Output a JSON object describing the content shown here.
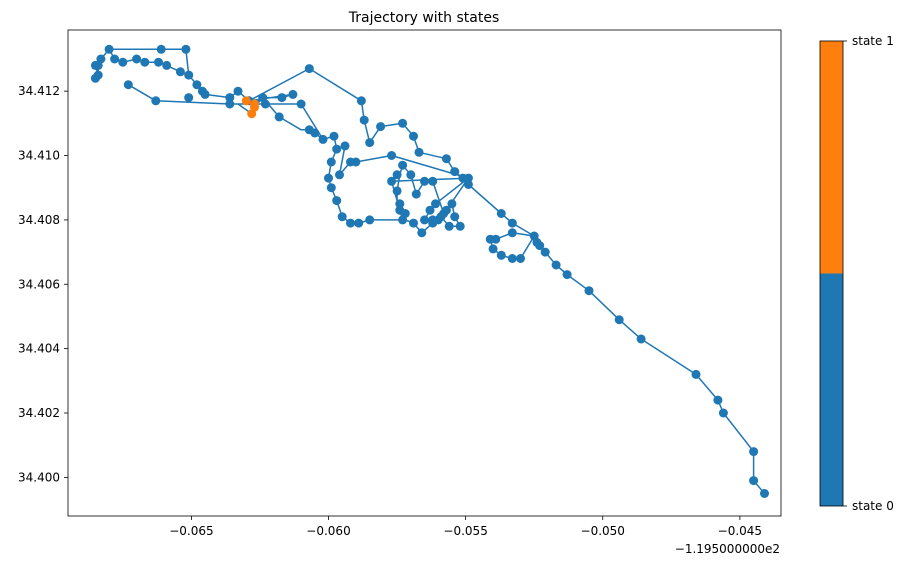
{
  "chart_data": {
    "type": "scatter",
    "title": "Trajectory with states",
    "xlabel": "",
    "ylabel": "",
    "x_offset_label": "−1.195000000e2",
    "xlim": [
      -0.0695,
      -0.0435
    ],
    "ylim": [
      34.3988,
      34.4139
    ],
    "x_ticks": [
      -0.065,
      -0.06,
      -0.055,
      -0.05,
      -0.045
    ],
    "x_tick_labels": [
      "−0.065",
      "−0.060",
      "−0.055",
      "−0.050",
      "−0.045"
    ],
    "y_ticks": [
      34.4,
      34.402,
      34.404,
      34.406,
      34.408,
      34.41,
      34.412
    ],
    "y_tick_labels": [
      "34.400",
      "34.402",
      "34.404",
      "34.406",
      "34.408",
      "34.410",
      "34.412"
    ],
    "grid": false,
    "line_color": "#1f77b4",
    "series": [
      {
        "name": "state 0",
        "color": "#1f77b4",
        "points": [
          [
            -0.0441,
            34.3995
          ],
          [
            -0.0445,
            34.3999
          ],
          [
            -0.0445,
            34.4008
          ],
          [
            -0.0456,
            34.402
          ],
          [
            -0.0458,
            34.4024
          ],
          [
            -0.0466,
            34.4032
          ],
          [
            -0.0486,
            34.4043
          ],
          [
            -0.0494,
            34.4049
          ],
          [
            -0.0505,
            34.4058
          ],
          [
            -0.0513,
            34.4063
          ],
          [
            -0.0517,
            34.4066
          ],
          [
            -0.0521,
            34.407
          ],
          [
            -0.0523,
            34.4072
          ],
          [
            -0.0524,
            34.4073
          ],
          [
            -0.0525,
            34.4075
          ],
          [
            -0.053,
            34.4068
          ],
          [
            -0.0533,
            34.4068
          ],
          [
            -0.0537,
            34.4069
          ],
          [
            -0.054,
            34.4071
          ],
          [
            -0.0541,
            34.4074
          ],
          [
            -0.0539,
            34.4074
          ],
          [
            -0.0533,
            34.4076
          ],
          [
            -0.0533,
            34.4079
          ],
          [
            -0.0537,
            34.4082
          ],
          [
            -0.0549,
            34.4091
          ],
          [
            -0.0551,
            34.4093
          ],
          [
            -0.0554,
            34.4095
          ],
          [
            -0.0557,
            34.4099
          ],
          [
            -0.0567,
            34.4101
          ],
          [
            -0.0569,
            34.4106
          ],
          [
            -0.0573,
            34.411
          ],
          [
            -0.0581,
            34.4109
          ],
          [
            -0.0585,
            34.4104
          ],
          [
            -0.0587,
            34.4111
          ],
          [
            -0.0588,
            34.4117
          ],
          [
            -0.0594,
            34.4103
          ],
          [
            -0.0597,
            34.4102
          ],
          [
            -0.0598,
            34.4106
          ],
          [
            -0.0602,
            34.4105
          ],
          [
            -0.0605,
            34.4107
          ],
          [
            -0.0607,
            34.4108
          ],
          [
            -0.061,
            34.4116
          ],
          [
            -0.0607,
            34.4127
          ],
          [
            -0.0623,
            34.4116
          ],
          [
            -0.0629,
            34.4117
          ],
          [
            -0.0633,
            34.412
          ],
          [
            -0.0636,
            34.4118
          ],
          [
            -0.0636,
            34.4116
          ],
          [
            -0.0624,
            34.4118
          ],
          [
            -0.0617,
            34.4118
          ],
          [
            -0.0613,
            34.4119
          ],
          [
            -0.0618,
            34.4112
          ],
          [
            -0.0645,
            34.4119
          ],
          [
            -0.0651,
            34.4118
          ],
          [
            -0.0663,
            34.4117
          ],
          [
            -0.0673,
            34.4122
          ],
          [
            -0.0646,
            34.412
          ],
          [
            -0.0648,
            34.4122
          ],
          [
            -0.0651,
            34.4125
          ],
          [
            -0.0654,
            34.4126
          ],
          [
            -0.0659,
            34.4128
          ],
          [
            -0.0662,
            34.4129
          ],
          [
            -0.0667,
            34.4129
          ],
          [
            -0.067,
            34.413
          ],
          [
            -0.0675,
            34.4129
          ],
          [
            -0.0678,
            34.413
          ],
          [
            -0.068,
            34.4133
          ],
          [
            -0.0683,
            34.413
          ],
          [
            -0.0684,
            34.4128
          ],
          [
            -0.0685,
            34.4128
          ],
          [
            -0.0684,
            34.4125
          ],
          [
            -0.0685,
            34.4124
          ],
          [
            -0.0661,
            34.4133
          ],
          [
            -0.0652,
            34.4133
          ],
          [
            -0.059,
            34.4098
          ],
          [
            -0.0592,
            34.4098
          ],
          [
            -0.0596,
            34.4094
          ],
          [
            -0.0599,
            34.4098
          ],
          [
            -0.06,
            34.4093
          ],
          [
            -0.0599,
            34.409
          ],
          [
            -0.0597,
            34.4086
          ],
          [
            -0.0595,
            34.4081
          ],
          [
            -0.0592,
            34.4079
          ],
          [
            -0.0589,
            34.4079
          ],
          [
            -0.0585,
            34.408
          ],
          [
            -0.0577,
            34.4092
          ],
          [
            -0.057,
            34.4094
          ],
          [
            -0.0568,
            34.4088
          ],
          [
            -0.0565,
            34.4092
          ],
          [
            -0.0562,
            34.4092
          ],
          [
            -0.0558,
            34.4082
          ],
          [
            -0.0556,
            34.4078
          ],
          [
            -0.0552,
            34.4078
          ],
          [
            -0.0554,
            34.4081
          ],
          [
            -0.0555,
            34.4085
          ],
          [
            -0.0549,
            34.4093
          ],
          [
            -0.0561,
            34.4085
          ],
          [
            -0.0557,
            34.4083
          ],
          [
            -0.056,
            34.408
          ],
          [
            -0.0562,
            34.4079
          ],
          [
            -0.0566,
            34.4076
          ],
          [
            -0.0569,
            34.4079
          ],
          [
            -0.0573,
            34.408
          ],
          [
            -0.0574,
            34.4083
          ],
          [
            -0.0574,
            34.4085
          ],
          [
            -0.0575,
            34.4089
          ],
          [
            -0.0575,
            34.4094
          ],
          [
            -0.0573,
            34.4097
          ],
          [
            -0.0577,
            34.41
          ],
          [
            -0.0563,
            34.4083
          ],
          [
            -0.0559,
            34.4081
          ],
          [
            -0.0562,
            34.408
          ],
          [
            -0.0565,
            34.408
          ],
          [
            -0.0572,
            34.4082
          ]
        ]
      },
      {
        "name": "state 1",
        "color": "#ff7f0e",
        "points": [
          [
            -0.063,
            34.4117
          ],
          [
            -0.0628,
            34.4113
          ],
          [
            -0.0627,
            34.4115
          ],
          [
            -0.0627,
            34.4116
          ]
        ]
      }
    ],
    "path": [
      [
        -0.0441,
        34.3995
      ],
      [
        -0.0445,
        34.3999
      ],
      [
        -0.0445,
        34.4008
      ],
      [
        -0.0456,
        34.402
      ],
      [
        -0.0458,
        34.4024
      ],
      [
        -0.0466,
        34.4032
      ],
      [
        -0.0486,
        34.4043
      ],
      [
        -0.0494,
        34.4049
      ],
      [
        -0.0505,
        34.4058
      ],
      [
        -0.0513,
        34.4063
      ],
      [
        -0.0517,
        34.4066
      ],
      [
        -0.0521,
        34.407
      ],
      [
        -0.0523,
        34.4072
      ],
      [
        -0.0524,
        34.4073
      ],
      [
        -0.0525,
        34.4075
      ],
      [
        -0.0533,
        34.4076
      ],
      [
        -0.0539,
        34.4074
      ],
      [
        -0.0541,
        34.4074
      ],
      [
        -0.054,
        34.4071
      ],
      [
        -0.0537,
        34.4069
      ],
      [
        -0.0533,
        34.4068
      ],
      [
        -0.053,
        34.4068
      ],
      [
        -0.0525,
        34.4075
      ],
      [
        -0.0533,
        34.4079
      ],
      [
        -0.0537,
        34.4082
      ],
      [
        -0.0549,
        34.4091
      ],
      [
        -0.0551,
        34.4093
      ],
      [
        -0.0554,
        34.4095
      ],
      [
        -0.0557,
        34.4099
      ],
      [
        -0.0567,
        34.4101
      ],
      [
        -0.0569,
        34.4106
      ],
      [
        -0.0573,
        34.411
      ],
      [
        -0.0581,
        34.4109
      ],
      [
        -0.0585,
        34.4104
      ],
      [
        -0.0587,
        34.4111
      ],
      [
        -0.0588,
        34.4117
      ],
      [
        -0.0607,
        34.4127
      ],
      [
        -0.0629,
        34.4117
      ],
      [
        -0.063,
        34.4117
      ],
      [
        -0.0627,
        34.4116
      ],
      [
        -0.0624,
        34.4118
      ],
      [
        -0.0617,
        34.4118
      ],
      [
        -0.0613,
        34.4119
      ],
      [
        -0.0629,
        34.4117
      ],
      [
        -0.0633,
        34.412
      ],
      [
        -0.0636,
        34.4118
      ],
      [
        -0.0645,
        34.4119
      ],
      [
        -0.0646,
        34.412
      ],
      [
        -0.0648,
        34.4122
      ],
      [
        -0.0651,
        34.4125
      ],
      [
        -0.0654,
        34.4126
      ],
      [
        -0.0659,
        34.4128
      ],
      [
        -0.0662,
        34.4129
      ],
      [
        -0.0667,
        34.4129
      ],
      [
        -0.067,
        34.413
      ],
      [
        -0.0675,
        34.4129
      ],
      [
        -0.0678,
        34.413
      ],
      [
        -0.068,
        34.4133
      ],
      [
        -0.0683,
        34.413
      ],
      [
        -0.0684,
        34.4128
      ],
      [
        -0.0685,
        34.4128
      ],
      [
        -0.0684,
        34.4125
      ],
      [
        -0.0685,
        34.4124
      ],
      [
        -0.0684,
        34.4125
      ],
      [
        -0.0684,
        34.4129
      ],
      [
        -0.068,
        34.4133
      ],
      [
        -0.0661,
        34.4133
      ],
      [
        -0.0652,
        34.4133
      ],
      [
        -0.0651,
        34.4125
      ],
      [
        -0.0648,
        34.4122
      ],
      [
        -0.0646,
        34.412
      ],
      [
        -0.0645,
        34.4119
      ],
      [
        -0.0636,
        34.4118
      ],
      [
        -0.0636,
        34.4116
      ],
      [
        -0.0633,
        34.4116
      ],
      [
        -0.0628,
        34.4113
      ],
      [
        -0.0627,
        34.4115
      ],
      [
        -0.0624,
        34.4118
      ],
      [
        -0.0618,
        34.4112
      ],
      [
        -0.061,
        34.4108
      ],
      [
        -0.0607,
        34.4108
      ],
      [
        -0.0605,
        34.4107
      ],
      [
        -0.0602,
        34.4105
      ],
      [
        -0.0598,
        34.4106
      ],
      [
        -0.0597,
        34.4102
      ],
      [
        -0.0599,
        34.4098
      ],
      [
        -0.06,
        34.4093
      ],
      [
        -0.0599,
        34.409
      ],
      [
        -0.0597,
        34.4086
      ],
      [
        -0.0595,
        34.4081
      ],
      [
        -0.0592,
        34.4079
      ],
      [
        -0.0589,
        34.4079
      ],
      [
        -0.0585,
        34.408
      ],
      [
        -0.0572,
        34.408
      ],
      [
        -0.0569,
        34.4079
      ],
      [
        -0.0566,
        34.4076
      ],
      [
        -0.0562,
        34.4079
      ],
      [
        -0.056,
        34.408
      ],
      [
        -0.0557,
        34.4083
      ],
      [
        -0.0549,
        34.4093
      ],
      [
        -0.0561,
        34.4085
      ],
      [
        -0.0563,
        34.4083
      ],
      [
        -0.0565,
        34.408
      ],
      [
        -0.0562,
        34.408
      ],
      [
        -0.0559,
        34.4081
      ],
      [
        -0.0556,
        34.4078
      ],
      [
        -0.0552,
        34.4078
      ],
      [
        -0.0554,
        34.4081
      ],
      [
        -0.0555,
        34.4085
      ],
      [
        -0.0558,
        34.4082
      ],
      [
        -0.0562,
        34.4092
      ],
      [
        -0.0565,
        34.4092
      ],
      [
        -0.0568,
        34.4088
      ],
      [
        -0.057,
        34.4094
      ],
      [
        -0.0573,
        34.4097
      ],
      [
        -0.0574,
        34.4094
      ],
      [
        -0.0575,
        34.4089
      ],
      [
        -0.0575,
        34.4085
      ],
      [
        -0.0574,
        34.4083
      ],
      [
        -0.0573,
        34.408
      ],
      [
        -0.0577,
        34.4092
      ],
      [
        -0.0549,
        34.4093
      ],
      [
        -0.0577,
        34.41
      ],
      [
        -0.059,
        34.4098
      ],
      [
        -0.0592,
        34.4098
      ],
      [
        -0.0596,
        34.4094
      ],
      [
        -0.0594,
        34.4103
      ],
      [
        -0.0597,
        34.4102
      ],
      [
        -0.0598,
        34.4106
      ],
      [
        -0.0602,
        34.4105
      ],
      [
        -0.061,
        34.4116
      ],
      [
        -0.0623,
        34.4116
      ],
      [
        -0.0636,
        34.4116
      ],
      [
        -0.0663,
        34.4117
      ],
      [
        -0.0673,
        34.4122
      ]
    ],
    "colorbar": {
      "labels": [
        "state 1",
        "state 0"
      ],
      "colors": [
        "#ff7f0e",
        "#1f77b4"
      ]
    }
  }
}
